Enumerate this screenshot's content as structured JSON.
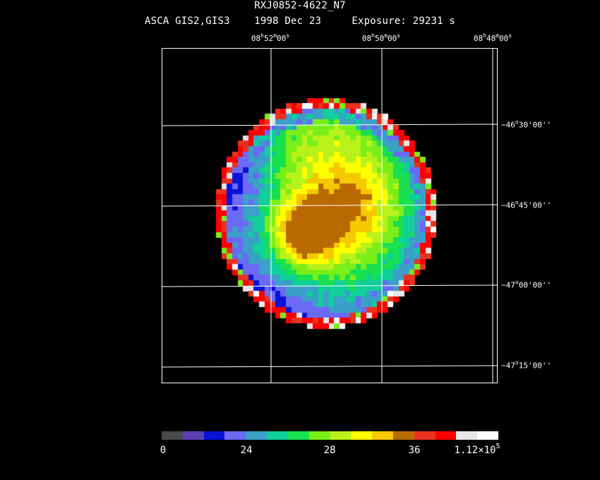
{
  "header": {
    "object": "RXJ0852-4622_N7",
    "instrument": "ASCA GIS2,GIS3",
    "date": "1998 Dec 23",
    "exposure": "Exposure: 29231 s"
  },
  "ra_ticks": [
    {
      "h": "08",
      "m": "52",
      "s": "00"
    },
    {
      "h": "08",
      "m": "50",
      "s": "00"
    },
    {
      "h": "08",
      "m": "48",
      "s": "00"
    }
  ],
  "dec_ticks": [
    {
      "d": "−46",
      "m": "30",
      "s": "00"
    },
    {
      "d": "−46",
      "m": "45",
      "s": "00"
    },
    {
      "d": "−47",
      "m": "00",
      "s": "00"
    },
    {
      "d": "−47",
      "m": "15",
      "s": "00"
    }
  ],
  "colorbar": {
    "colors": [
      "#4a4a4a",
      "#5a3fb5",
      "#0a12d6",
      "#6a6af5",
      "#3aa0c8",
      "#0fcf9a",
      "#18e050",
      "#7aee18",
      "#b8f21a",
      "#ffff00",
      "#f5c800",
      "#b86a00",
      "#e8321e",
      "#ff0000",
      "#e6e6e6",
      "#ffffff"
    ],
    "labels": [
      "0",
      "24",
      "28",
      "36"
    ],
    "max_label": {
      "base": "1.12×10",
      "exp": "5"
    }
  }
}
